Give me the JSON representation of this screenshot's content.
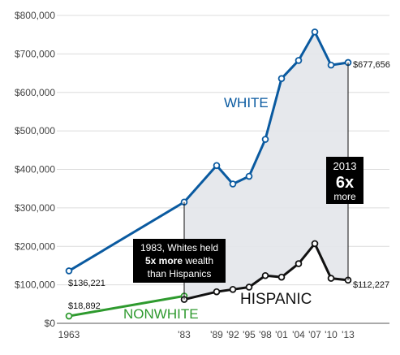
{
  "chart_data": {
    "type": "line",
    "ylim": [
      0,
      800000
    ],
    "y_ticks": [
      "$0",
      "$100,000",
      "$200,000",
      "$300,000",
      "$400,000",
      "$500,000",
      "$600,000",
      "$700,000",
      "$800,000"
    ],
    "x_tick_labels": [
      {
        "x": 1963,
        "label": "1963"
      },
      {
        "x": 1983,
        "label": "'83"
      },
      {
        "x": 1989,
        "label": "'89"
      },
      {
        "x": 1992,
        "label": "'92"
      },
      {
        "x": 1995,
        "label": "'95"
      },
      {
        "x": 1998,
        "label": "'98"
      },
      {
        "x": 2001,
        "label": "'01"
      },
      {
        "x": 2004,
        "label": "'04"
      },
      {
        "x": 2007,
        "label": "'07"
      },
      {
        "x": 2010,
        "label": "'10"
      },
      {
        "x": 2013,
        "label": "'13"
      }
    ],
    "series": [
      {
        "name": "WHITE",
        "color": "#0a5aa0",
        "x": [
          1963,
          1983,
          1989,
          1992,
          1995,
          1998,
          2001,
          2004,
          2007,
          2010,
          2013
        ],
        "values": [
          136221,
          315000,
          410000,
          362000,
          382000,
          478000,
          636000,
          683000,
          757000,
          671000,
          677656
        ]
      },
      {
        "name": "NONWHITE",
        "color": "#2e9a2e",
        "x": [
          1963,
          1983
        ],
        "values": [
          18892,
          71000
        ]
      },
      {
        "name": "HISPANIC",
        "color": "#111111",
        "x": [
          1983,
          1989,
          1992,
          1995,
          1998,
          2001,
          2004,
          2007,
          2010,
          2013
        ],
        "values": [
          62000,
          82000,
          88000,
          94000,
          124000,
          120000,
          155000,
          207000,
          117000,
          112227
        ]
      }
    ],
    "end_labels": {
      "white_start": "$136,221",
      "white_end": "$677,656",
      "nonwhite_start": "$18,892",
      "hispanic_end": "$112,227"
    },
    "annotations": {
      "a1983": {
        "line1": "1983, Whites held",
        "bold": "5x more",
        "line2_rest": " wealth",
        "line3": "than Hispanics"
      },
      "a2013": {
        "year": "2013",
        "multiple": "6x",
        "word": "more"
      }
    }
  }
}
